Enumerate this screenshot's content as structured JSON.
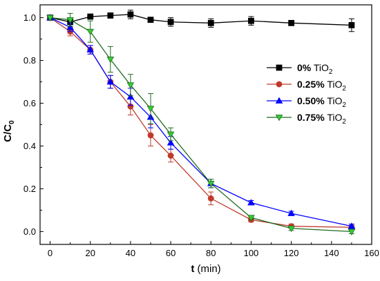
{
  "chart_data": {
    "type": "line",
    "xlabel": {
      "bold": "t",
      "rest": " (min)"
    },
    "ylabel": {
      "main": "C/C",
      "sub": "0"
    },
    "xlim": [
      -5,
      160
    ],
    "ylim": [
      -0.06,
      1.06
    ],
    "xticks": [
      0,
      20,
      40,
      60,
      80,
      100,
      120,
      140,
      160
    ],
    "yticks": [
      0.0,
      0.2,
      0.4,
      0.6,
      0.8,
      1.0
    ],
    "xtick_labels": [
      "0",
      "20",
      "40",
      "60",
      "80",
      "100",
      "120",
      "140",
      "160"
    ],
    "ytick_labels": [
      "0.0",
      "0.2",
      "0.4",
      "0.6",
      "0.8",
      "1.0"
    ],
    "grid": false,
    "legend_position": "center-right",
    "x": [
      0,
      10,
      20,
      30,
      40,
      50,
      60,
      80,
      100,
      120,
      150
    ],
    "series": [
      {
        "name_bold": "0%",
        "name_rest": " TiO",
        "name_sub": "2",
        "color": "#000000",
        "marker": "square",
        "values": [
          1.0,
          0.98,
          1.005,
          1.01,
          1.015,
          0.99,
          0.98,
          0.975,
          0.985,
          0.975,
          0.965
        ],
        "errors": [
          0.01,
          0.02,
          0.01,
          0.01,
          0.02,
          0.01,
          0.02,
          0.02,
          0.02,
          0.01,
          0.03
        ]
      },
      {
        "name_bold": "0.25%",
        "name_rest": " TiO",
        "name_sub": "2",
        "color": "#c0392b",
        "marker": "circle",
        "values": [
          1.0,
          0.935,
          0.85,
          0.7,
          0.585,
          0.45,
          0.355,
          0.155,
          0.055,
          0.025,
          0.02
        ],
        "errors": [
          0.01,
          0.02,
          0.02,
          0.03,
          0.04,
          0.05,
          0.03,
          0.03,
          0.01,
          0.01,
          0.01
        ]
      },
      {
        "name_bold": "0.50%",
        "name_rest": " TiO",
        "name_sub": "2",
        "color": "#0000ff",
        "marker": "triangle",
        "values": [
          1.0,
          0.955,
          0.85,
          0.7,
          0.63,
          0.535,
          0.415,
          0.225,
          0.135,
          0.085,
          0.025
        ],
        "errors": [
          0.01,
          0.02,
          0.02,
          0.03,
          0.04,
          0.05,
          0.03,
          0.02,
          0.01,
          0.01,
          0.01
        ]
      },
      {
        "name_bold": "0.75%",
        "name_rest": " TiO",
        "name_sub": "2",
        "color": "#33cc33",
        "line_color": "#1e6b1e",
        "marker": "triangle-down",
        "values": [
          1.0,
          0.99,
          0.935,
          0.805,
          0.685,
          0.575,
          0.455,
          0.225,
          0.065,
          0.015,
          0.0
        ],
        "errors": [
          0.01,
          0.03,
          0.05,
          0.06,
          0.05,
          0.07,
          0.03,
          0.02,
          0.01,
          0.01,
          0.01
        ]
      }
    ]
  }
}
